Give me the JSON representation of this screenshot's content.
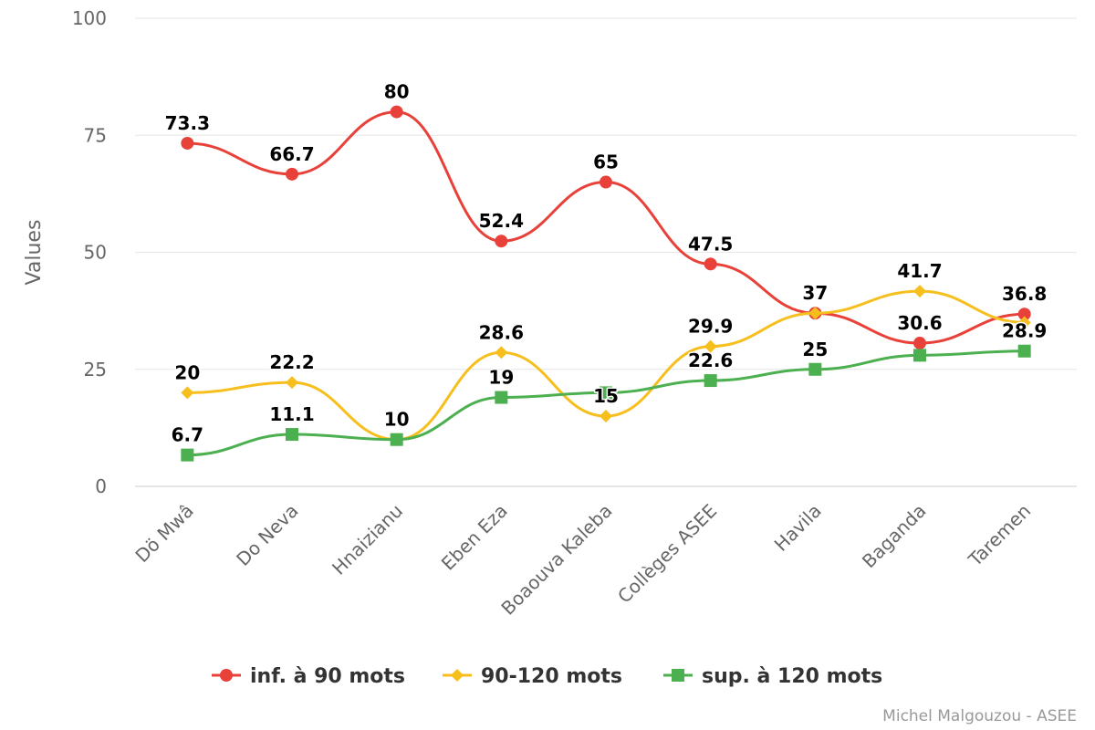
{
  "chart_data": {
    "type": "line",
    "ylabel": "Values",
    "ylim": [
      0,
      100
    ],
    "yticks": [
      0,
      25,
      50,
      75,
      100
    ],
    "categories": [
      "Dö Mwâ",
      "Do Neva",
      "Hnaizianu",
      "Eben Eza",
      "Boaouva Kaleba",
      "Collèges ASEE",
      "Havila",
      "Baganda",
      "Taremen"
    ],
    "series": [
      {
        "name": "inf. à 90 mots",
        "color": "#e8413a",
        "marker": "circle",
        "values": [
          73.3,
          66.7,
          80,
          52.4,
          65,
          47.5,
          37,
          30.6,
          36.8
        ]
      },
      {
        "name": "90-120 mots",
        "color": "#f7bf1d",
        "marker": "diamond",
        "values": [
          20,
          22.2,
          10,
          28.6,
          15,
          29.9,
          37,
          41.7,
          35
        ]
      },
      {
        "name": "sup. à 120 mots",
        "color": "#4caf50",
        "marker": "square",
        "values": [
          6.7,
          11.1,
          10,
          19,
          20,
          22.6,
          25,
          28,
          28.9
        ]
      }
    ],
    "data_labels": [
      {
        "series": 0,
        "index": 0,
        "text": "73.3"
      },
      {
        "series": 0,
        "index": 1,
        "text": "66.7"
      },
      {
        "series": 0,
        "index": 2,
        "text": "80"
      },
      {
        "series": 0,
        "index": 3,
        "text": "52.4"
      },
      {
        "series": 0,
        "index": 4,
        "text": "65"
      },
      {
        "series": 0,
        "index": 5,
        "text": "47.5"
      },
      {
        "series": 0,
        "index": 7,
        "text": "30.6"
      },
      {
        "series": 0,
        "index": 8,
        "text": "36.8"
      },
      {
        "series": 1,
        "index": 0,
        "text": "20"
      },
      {
        "series": 1,
        "index": 1,
        "text": "22.2"
      },
      {
        "series": 1,
        "index": 3,
        "text": "28.6"
      },
      {
        "series": 1,
        "index": 4,
        "text": "15"
      },
      {
        "series": 1,
        "index": 5,
        "text": "29.9"
      },
      {
        "series": 1,
        "index": 6,
        "text": "37"
      },
      {
        "series": 1,
        "index": 7,
        "text": "41.7"
      },
      {
        "series": 2,
        "index": 0,
        "text": "6.7"
      },
      {
        "series": 2,
        "index": 1,
        "text": "11.1"
      },
      {
        "series": 2,
        "index": 2,
        "text": "10"
      },
      {
        "series": 2,
        "index": 3,
        "text": "19"
      },
      {
        "series": 2,
        "index": 5,
        "text": "22.6"
      },
      {
        "series": 2,
        "index": 6,
        "text": "25"
      },
      {
        "series": 2,
        "index": 8,
        "text": "28.9"
      }
    ],
    "legend_position": "bottom-center",
    "grid": true,
    "credit": "Michel Malgouzou - ASEE"
  }
}
